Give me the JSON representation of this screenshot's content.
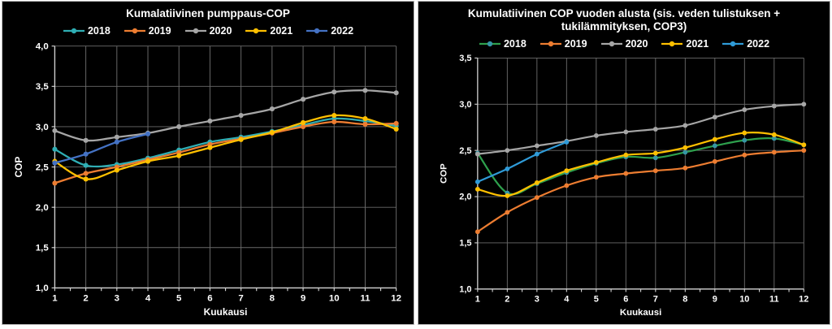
{
  "colors": {
    "page_background": "#ffffff",
    "panel_background": "#000000",
    "panel_border": "#b9b9b9",
    "grid": "#6b6b6b",
    "axis": "#d2d2d2",
    "text": "#ffffff"
  },
  "chart_data": [
    {
      "type": "line",
      "title": "Kumalatiivinen pumppaus-COP",
      "title_lines": [
        "Kumalatiivinen pumppaus-COP"
      ],
      "xlabel": "Kuukausi",
      "ylabel": "COP",
      "x": [
        1,
        2,
        3,
        4,
        5,
        6,
        7,
        8,
        9,
        10,
        11,
        12
      ],
      "x_tick_labels": [
        "1",
        "2",
        "3",
        "4",
        "5",
        "6",
        "7",
        "8",
        "9",
        "10",
        "11",
        "12"
      ],
      "y_tick_labels": [
        "4,0",
        "3,5",
        "3,0",
        "2,5",
        "2,0",
        "1,5",
        "1,0"
      ],
      "ylim": [
        1.0,
        4.0
      ],
      "y_step": 0.5,
      "grid": true,
      "legend_position": "top",
      "series": [
        {
          "name": "2018",
          "color": "#2FAEB4",
          "values": [
            2.72,
            2.52,
            2.53,
            2.61,
            2.71,
            2.81,
            2.87,
            2.94,
            3.02,
            3.1,
            3.07,
            3.01
          ]
        },
        {
          "name": "2019",
          "color": "#ED7D31",
          "values": [
            2.3,
            2.42,
            2.5,
            2.59,
            2.68,
            2.78,
            2.85,
            2.92,
            3.0,
            3.06,
            3.03,
            3.04
          ]
        },
        {
          "name": "2020",
          "color": "#A6A6A6",
          "values": [
            2.95,
            2.83,
            2.87,
            2.92,
            3.0,
            3.07,
            3.14,
            3.22,
            3.34,
            3.43,
            3.45,
            3.42
          ]
        },
        {
          "name": "2021",
          "color": "#FFC000",
          "values": [
            2.57,
            2.35,
            2.46,
            2.57,
            2.64,
            2.74,
            2.84,
            2.93,
            3.05,
            3.14,
            3.1,
            2.97
          ]
        },
        {
          "name": "2022",
          "color": "#4472C4",
          "values": [
            2.55,
            2.66,
            2.81,
            2.91
          ]
        }
      ]
    },
    {
      "type": "line",
      "title": "Kumulatiivinen COP vuoden alusta (sis. veden tulistuksen + tukilämmityksen, COP3)",
      "title_lines": [
        "Kumulatiivinen COP vuoden alusta (sis. veden tulistuksen +",
        "tukilämmityksen, COP3)"
      ],
      "xlabel": "Kuukausi",
      "ylabel": "COP",
      "x": [
        1,
        2,
        3,
        4,
        5,
        6,
        7,
        8,
        9,
        10,
        11,
        12
      ],
      "x_tick_labels": [
        "1",
        "2",
        "3",
        "4",
        "5",
        "6",
        "7",
        "8",
        "9",
        "10",
        "11",
        "12"
      ],
      "y_tick_labels": [
        "3,5",
        "3,0",
        "2,5",
        "2,0",
        "1,5",
        "1,0"
      ],
      "ylim": [
        1.0,
        3.5
      ],
      "y_step": 0.5,
      "grid": true,
      "legend_position": "top",
      "series": [
        {
          "name": "2018",
          "color": "#2EA04D",
          "marker_color": "#3596A5",
          "values": [
            2.47,
            2.04,
            2.14,
            2.26,
            2.36,
            2.43,
            2.42,
            2.48,
            2.55,
            2.61,
            2.63,
            2.56
          ]
        },
        {
          "name": "2019",
          "color": "#ED7D31",
          "values": [
            1.62,
            1.83,
            1.99,
            2.12,
            2.21,
            2.25,
            2.28,
            2.31,
            2.38,
            2.45,
            2.48,
            2.5
          ]
        },
        {
          "name": "2020",
          "color": "#A6A6A6",
          "values": [
            2.46,
            2.5,
            2.55,
            2.6,
            2.66,
            2.7,
            2.73,
            2.77,
            2.86,
            2.94,
            2.98,
            3.0
          ]
        },
        {
          "name": "2021",
          "color": "#FFC000",
          "values": [
            2.08,
            2.01,
            2.15,
            2.28,
            2.37,
            2.45,
            2.47,
            2.53,
            2.62,
            2.69,
            2.67,
            2.56
          ]
        },
        {
          "name": "2022",
          "color": "#2F9BD8",
          "values": [
            2.16,
            2.3,
            2.46,
            2.59
          ]
        }
      ]
    }
  ]
}
